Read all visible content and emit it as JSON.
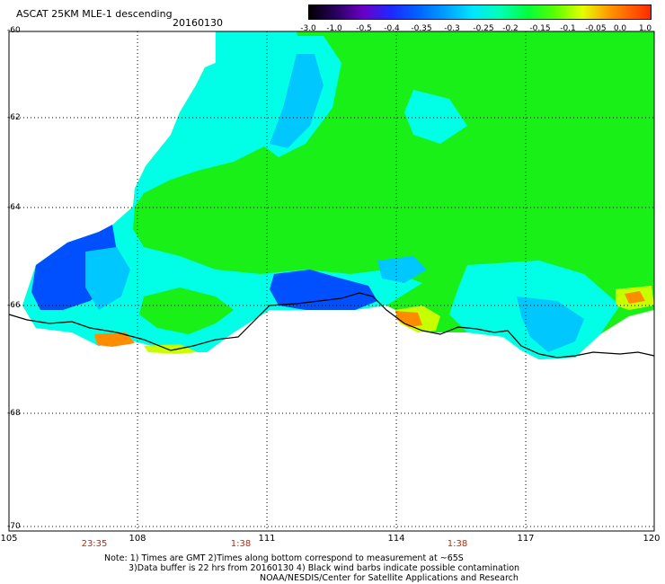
{
  "header": {
    "title": "ASCAT 25KM MLE-1 descending",
    "date": "20160130"
  },
  "colorbar": {
    "labels": [
      "-3.0",
      "-1.0",
      "-0.5",
      "-0.4",
      "-0.35",
      "-0.3",
      "-0.25",
      "-0.2",
      "-0.15",
      "-0.1",
      "-0.05",
      "0.0",
      "1.0"
    ],
    "colors": [
      "#000000",
      "#2a0060",
      "#6a00c8",
      "#1e28ff",
      "#0064ff",
      "#00a0ff",
      "#00e6ff",
      "#00ffb4",
      "#00ff3c",
      "#5aff00",
      "#e6ff00",
      "#ff9600",
      "#ff2a00"
    ]
  },
  "axes": {
    "lat_labels": [
      "-60",
      "-62",
      "-64",
      "-66",
      "-68",
      "-70"
    ],
    "lon_labels": [
      "105",
      "108",
      "111",
      "114",
      "117",
      "120"
    ]
  },
  "pass_times": [
    "23:35",
    "1:38",
    "1:38"
  ],
  "notes": {
    "line1": "Note: 1) Times are GMT 2)Times along bottom correspond to measurement at ~65S",
    "line2": "3)Data buffer is 22 hrs from 20160130 4) Black wind barbs indicate possible contamination",
    "line3": "NOAA/NESDIS/Center for Satellite Applications and Research"
  },
  "colors": {
    "ocean_main": "#18f018",
    "ocean_cyan": "#00ffe6",
    "ocean_lightblue": "#00c8ff",
    "ocean_blue": "#0050ff",
    "ocean_yellow": "#c8ff00",
    "ocean_orange": "#ff8c00",
    "coastline": "#000000",
    "grid": "#000000",
    "time_label": "#cc2200"
  }
}
